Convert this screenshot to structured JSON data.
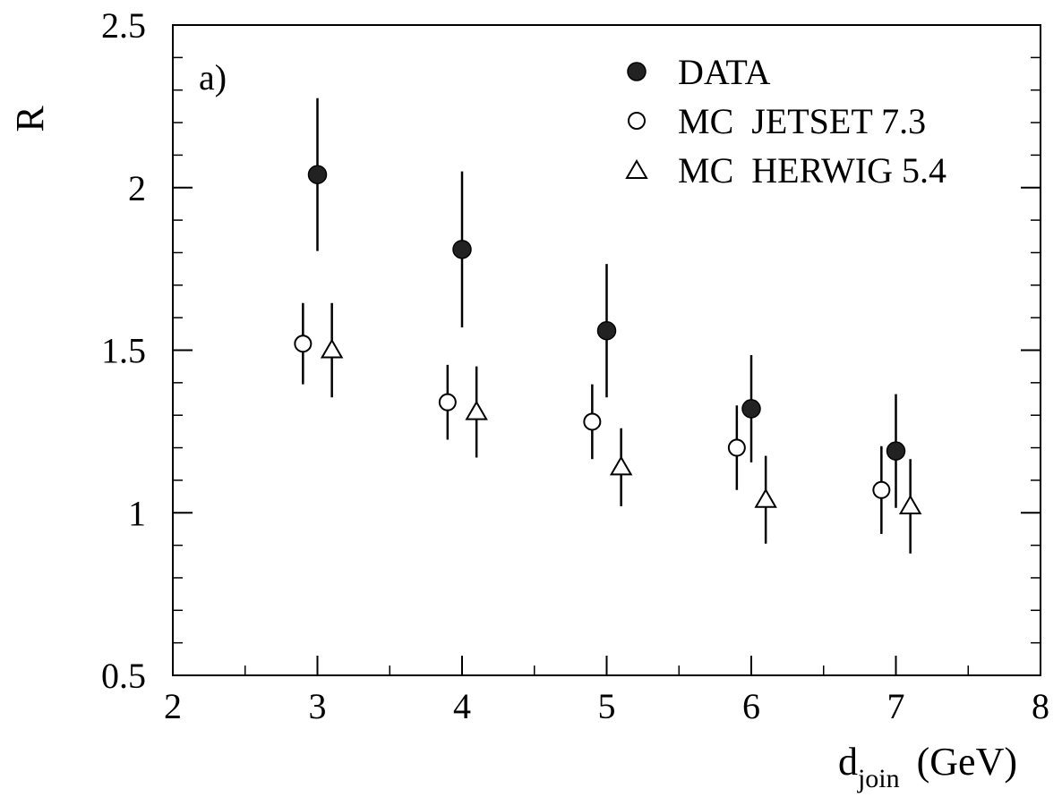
{
  "chart_data": {
    "type": "scatter",
    "panel_label": "a)",
    "xlabel": {
      "main": "d",
      "subscript": "join",
      "unit": "(GeV)"
    },
    "ylabel": "R",
    "xlim": [
      2,
      8
    ],
    "ylim": [
      0.5,
      2.5
    ],
    "x_ticks": [
      2,
      3,
      4,
      5,
      6,
      7,
      8
    ],
    "x_tick_labels": [
      "2",
      "3",
      "4",
      "5",
      "6",
      "7",
      "8"
    ],
    "y_ticks": [
      0.5,
      1,
      1.5,
      2,
      2.5
    ],
    "y_tick_labels": [
      "0.5",
      "1",
      "1.5",
      "2",
      "2.5"
    ],
    "grid": false,
    "legend_position": "top-right",
    "series": [
      {
        "name": "DATA",
        "marker": "filled-circle",
        "x": [
          3.0,
          4.0,
          5.0,
          6.0,
          7.0
        ],
        "y": [
          2.04,
          1.81,
          1.56,
          1.32,
          1.19
        ],
        "yerr": [
          0.235,
          0.24,
          0.205,
          0.165,
          0.175
        ]
      },
      {
        "name": "MC  JETSET 7.3",
        "marker": "open-circle",
        "x": [
          2.9,
          3.9,
          4.9,
          5.9,
          6.9
        ],
        "y": [
          1.52,
          1.34,
          1.28,
          1.2,
          1.07
        ],
        "yerr": [
          0.125,
          0.115,
          0.115,
          0.13,
          0.135
        ]
      },
      {
        "name": "MC  HERWIG 5.4",
        "marker": "open-triangle",
        "x": [
          3.1,
          4.1,
          5.1,
          6.1,
          7.1
        ],
        "y": [
          1.5,
          1.31,
          1.14,
          1.04,
          1.02
        ],
        "yerr": [
          0.145,
          0.14,
          0.12,
          0.135,
          0.145
        ]
      }
    ]
  }
}
